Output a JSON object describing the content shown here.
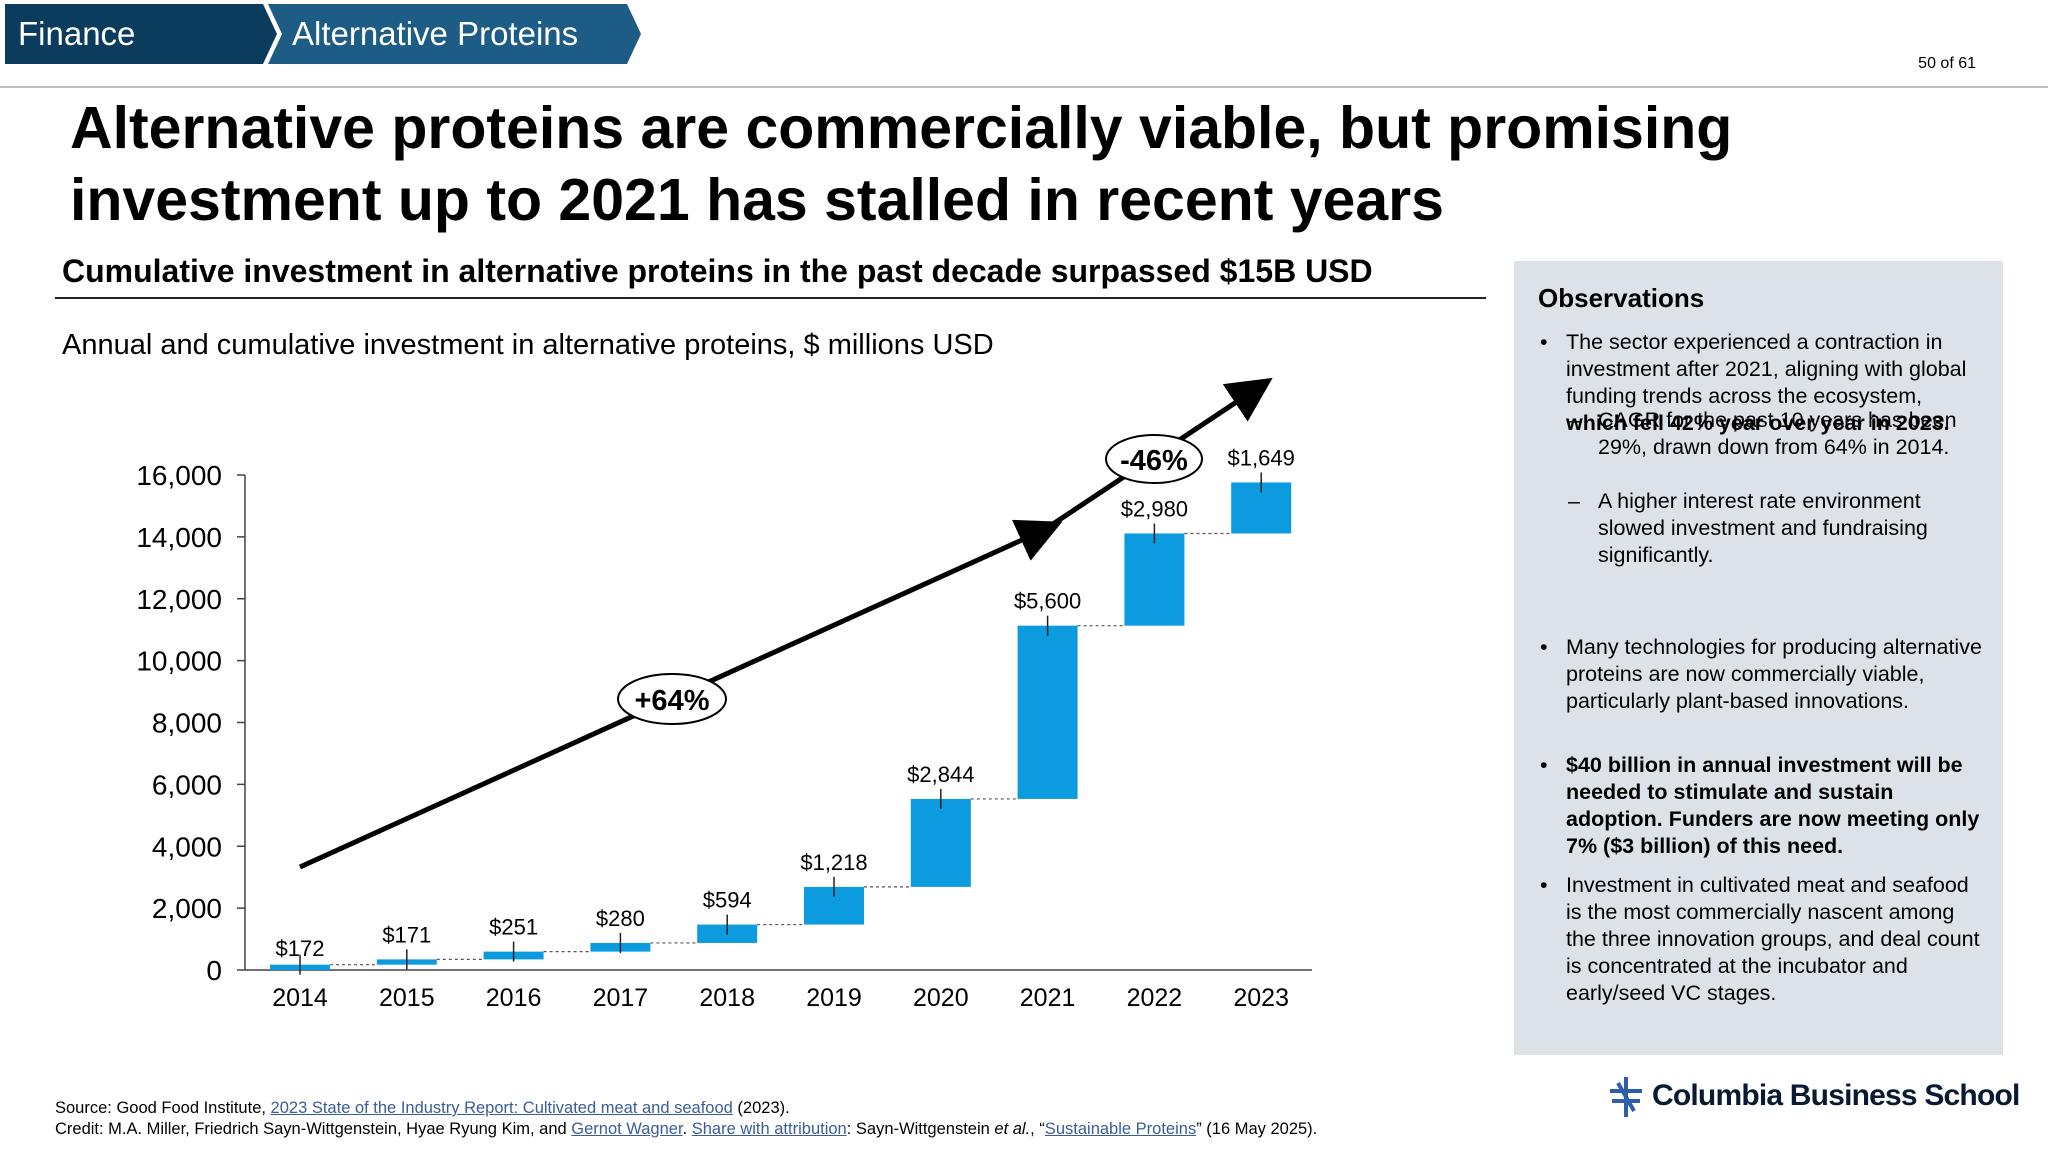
{
  "breadcrumb": {
    "items": [
      "Finance",
      "Alternative Proteins"
    ],
    "colors": {
      "first": "#0b3c5d",
      "second": "#1d5c84"
    }
  },
  "page_number": "50 of 61",
  "title": "Alternative proteins are commercially viable, but promising investment up to 2021 has stalled in recent years",
  "subtitle": "Cumulative investment in alternative proteins in the past decade surpassed $15B USD",
  "chart_heading": "Annual and cumulative investment in alternative proteins, $ millions USD",
  "chart_data": {
    "type": "bar",
    "subtype": "waterfall",
    "categories": [
      "2014",
      "2015",
      "2016",
      "2017",
      "2018",
      "2019",
      "2020",
      "2021",
      "2022",
      "2023"
    ],
    "values": [
      172,
      171,
      251,
      280,
      594,
      1218,
      2844,
      5600,
      2980,
      1649
    ],
    "value_labels": [
      "$172",
      "$171",
      "$251",
      "$280",
      "$594",
      "$1,218",
      "$2,844",
      "$5,600",
      "$2,980",
      "$1,649"
    ],
    "yticks": [
      0,
      2000,
      4000,
      6000,
      8000,
      10000,
      12000,
      14000,
      16000
    ],
    "ytick_labels": [
      "0",
      "2,000",
      "4,000",
      "6,000",
      "8,000",
      "10,000",
      "12,000",
      "14,000",
      "16,000"
    ],
    "ylim": [
      0,
      16000
    ],
    "bar_color": "#0b9bde",
    "annotations": [
      {
        "text": "+64%",
        "period": "2014-2021"
      },
      {
        "text": "-46%",
        "period": "2021-2023"
      }
    ]
  },
  "observations": {
    "title": "Observations",
    "bullets": [
      {
        "level": 1,
        "marker": "•",
        "segments": [
          {
            "text": "The sector experienced a contraction in investment after 2021, aligning with global funding trends across the ecosystem, ",
            "bold": false
          },
          {
            "text": "which fell 42% year over year in 2023.",
            "bold": true
          }
        ]
      },
      {
        "level": 2,
        "marker": "–",
        "segments": [
          {
            "text": "CAGR for the past 10 years has been 29%, drawn down from 64% in 2014.",
            "bold": false
          }
        ]
      },
      {
        "level": 2,
        "marker": "–",
        "segments": [
          {
            "text": "A higher interest rate environment slowed investment and fundraising significantly.",
            "bold": false
          }
        ]
      },
      {
        "level": 1,
        "marker": "•",
        "segments": [
          {
            "text": "Many technologies for producing alternative proteins are now commercially viable, particularly plant-based innovations.",
            "bold": false
          }
        ]
      },
      {
        "level": 1,
        "marker": "•",
        "segments": [
          {
            "text": "$40 billion in annual investment will be needed to stimulate and sustain adoption. Funders are now meeting only 7% ($3 billion) of this need.",
            "bold": true
          }
        ]
      },
      {
        "level": 1,
        "marker": "•",
        "segments": [
          {
            "text": "Investment in cultivated meat and seafood is the most commercially nascent among the three innovation groups, and deal count is concentrated at the incubator and early/seed VC stages.",
            "bold": false
          }
        ]
      }
    ]
  },
  "footer": {
    "source_prefix": "Source: Good Food Institute, ",
    "source_link": "2023 State of the Industry Report: Cultivated meat and seafood",
    "source_suffix": " (2023).",
    "credit_prefix": "Credit: M.A. Miller, Friedrich Sayn-Wittgenstein, Hyae Ryung Kim, and ",
    "credit_link1": "Gernot Wagner",
    "credit_sep": ". ",
    "credit_link2": "Share with attribution",
    "credit_mid": ": Sayn-Wittgenstein ",
    "credit_etal": "et al.",
    "credit_mid2": ", “",
    "credit_link3": "Sustainable Proteins",
    "credit_suffix": "” (16 May 2025)."
  },
  "logo": {
    "text": "Columbia Business School",
    "icon": "columbia-crown-icon"
  }
}
